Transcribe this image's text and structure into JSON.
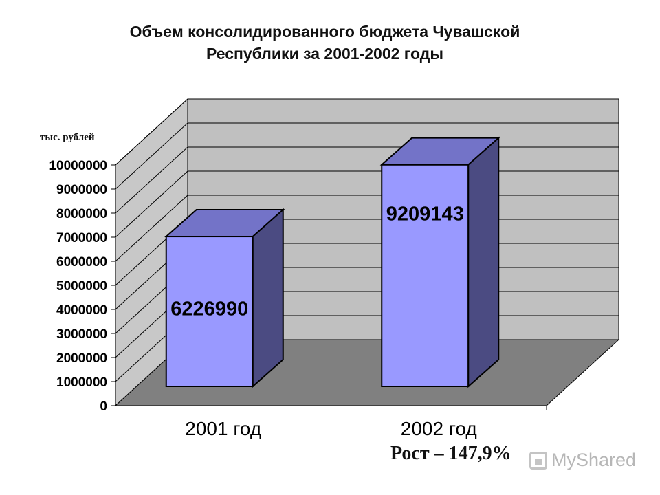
{
  "chart_data": {
    "type": "bar",
    "title_lines": [
      "Объем консолидированного бюджета Чувашской",
      "Республики за 2001-2002 годы"
    ],
    "ylabel": "тыс. рублей",
    "categories": [
      "2001 год",
      "2002 год"
    ],
    "values": [
      6226990,
      9209143
    ],
    "data_labels": [
      "6226990",
      "9209143"
    ],
    "ylim": [
      0,
      10000000
    ],
    "yticks": [
      "0",
      "1000000",
      "2000000",
      "3000000",
      "4000000",
      "5000000",
      "6000000",
      "7000000",
      "8000000",
      "9000000",
      "10000000"
    ],
    "grid": true,
    "style": "3d",
    "colors": {
      "bar_front": "#9999ff",
      "bar_top": "#7373c8",
      "bar_side": "#4b4b82",
      "back_wall": "#c0c0c0",
      "side_wall": "#c8c8c8",
      "floor": "#808080"
    }
  },
  "annotation": "Рост – 147,9%",
  "watermark": "MyShared"
}
